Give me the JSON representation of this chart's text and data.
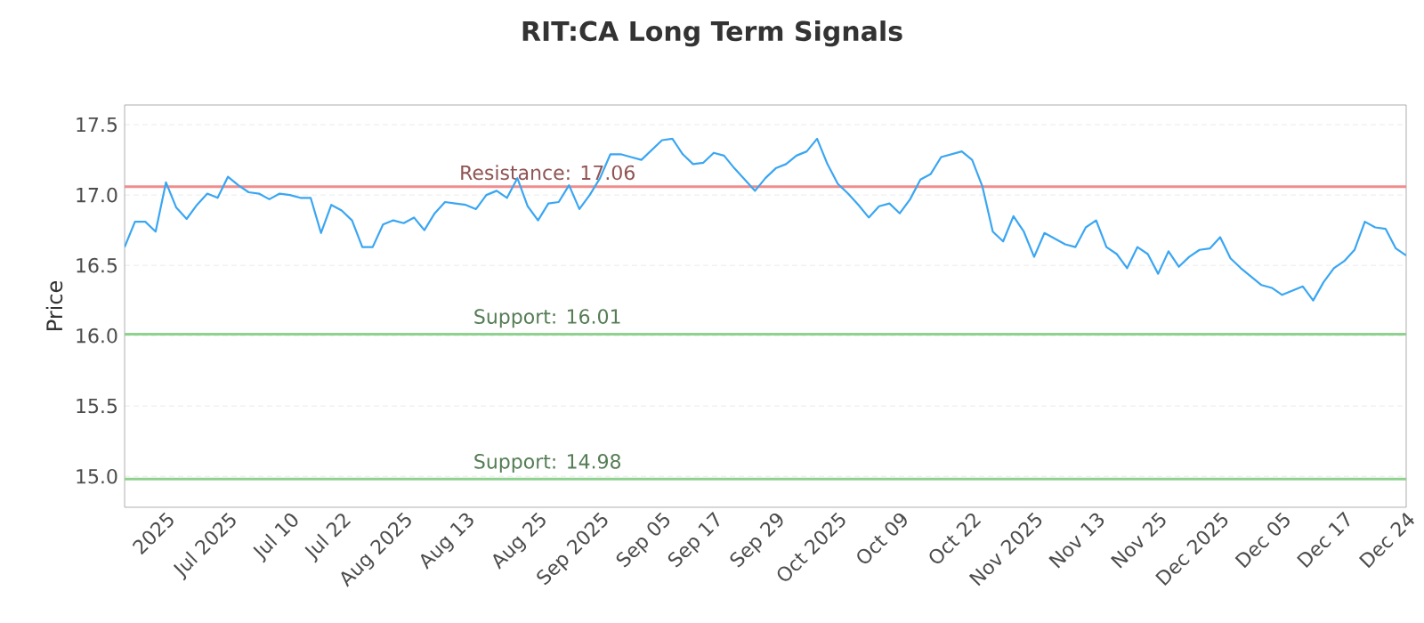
{
  "chart_data": {
    "type": "line",
    "title": "RIT:CA Long Term Signals",
    "ylabel": "Price",
    "categories": [
      null,
      null,
      null,
      null,
      "2025",
      null,
      null,
      null,
      null,
      null,
      "Jul 2025",
      null,
      null,
      null,
      null,
      null,
      "Jul 10",
      null,
      null,
      null,
      null,
      "Jul 22",
      null,
      null,
      null,
      null,
      null,
      "Aug 2025",
      null,
      null,
      null,
      null,
      null,
      "Aug 13",
      null,
      null,
      null,
      null,
      null,
      null,
      "Aug 25",
      null,
      null,
      null,
      null,
      null,
      "Sep 2025",
      null,
      null,
      null,
      null,
      null,
      "Sep 05",
      null,
      null,
      null,
      null,
      "Sep 17",
      null,
      null,
      null,
      null,
      null,
      "Sep 29",
      null,
      null,
      null,
      null,
      null,
      "Oct 2025",
      null,
      null,
      null,
      null,
      null,
      "Oct 09",
      null,
      null,
      null,
      null,
      null,
      null,
      "Oct 22",
      null,
      null,
      null,
      null,
      null,
      "Nov 2025",
      null,
      null,
      null,
      null,
      null,
      "Nov 13",
      null,
      null,
      null,
      null,
      null,
      "Nov 25",
      null,
      null,
      null,
      null,
      null,
      "Dec 2025",
      null,
      null,
      null,
      null,
      null,
      "Dec 05",
      null,
      null,
      null,
      null,
      null,
      "Dec 17",
      null,
      null,
      null,
      null,
      null,
      "Dec 24"
    ],
    "series": [
      {
        "color": "#3aa6f2",
        "values": [
          16.63,
          16.81,
          16.81,
          16.74,
          17.09,
          16.91,
          16.83,
          16.93,
          17.01,
          16.98,
          17.13,
          17.07,
          17.02,
          17.01,
          16.97,
          17.01,
          17.0,
          16.98,
          16.98,
          16.73,
          16.93,
          16.89,
          16.82,
          16.63,
          16.63,
          16.79,
          16.82,
          16.8,
          16.84,
          16.75,
          16.87,
          16.95,
          16.94,
          16.93,
          16.9,
          17.0,
          17.03,
          16.98,
          17.12,
          16.92,
          16.82,
          16.94,
          16.95,
          17.07,
          16.9,
          17.0,
          17.12,
          17.29,
          17.29,
          17.27,
          17.25,
          17.32,
          17.39,
          17.4,
          17.29,
          17.22,
          17.23,
          17.3,
          17.28,
          17.19,
          17.11,
          17.03,
          17.12,
          17.19,
          17.22,
          17.28,
          17.31,
          17.4,
          17.22,
          17.08,
          17.01,
          16.93,
          16.84,
          16.92,
          16.94,
          16.87,
          16.97,
          17.11,
          17.15,
          17.27,
          17.29,
          17.31,
          17.25,
          17.06,
          16.74,
          16.67,
          16.85,
          16.74,
          16.56,
          16.73,
          16.69,
          16.65,
          16.63,
          16.77,
          16.82,
          16.63,
          16.58,
          16.48,
          16.63,
          16.58,
          16.44,
          16.6,
          16.49,
          16.56,
          16.61,
          16.62,
          16.7,
          16.55,
          16.48,
          16.42,
          16.36,
          16.34,
          16.29,
          16.32,
          16.35,
          16.25,
          16.38,
          16.48,
          16.53,
          16.61,
          16.81,
          16.77,
          16.76,
          16.62,
          16.57
        ]
      }
    ],
    "ylim": [
      14.78,
      17.64
    ],
    "yticks": [
      {
        "value": 15,
        "label": "15.0"
      },
      {
        "value": 15.5,
        "label": "15.5"
      },
      {
        "value": 16,
        "label": "16.0"
      },
      {
        "value": 16.5,
        "label": "16.5"
      },
      {
        "value": 17,
        "label": "17.0"
      },
      {
        "value": 17.5,
        "label": "17.5"
      }
    ],
    "grid": "y",
    "marker": "none",
    "line_style": "solid",
    "ref_lines": [
      {
        "axis": "y",
        "value": 17.06,
        "label": "Resistance: 17.06",
        "color": "#f08c8c"
      },
      {
        "axis": "y",
        "value": 16.01,
        "label": "Support: 16.01",
        "color": "#8fd18f"
      },
      {
        "axis": "y",
        "value": 14.98,
        "label": "Support: 14.98",
        "color": "#8fd18f"
      }
    ]
  }
}
